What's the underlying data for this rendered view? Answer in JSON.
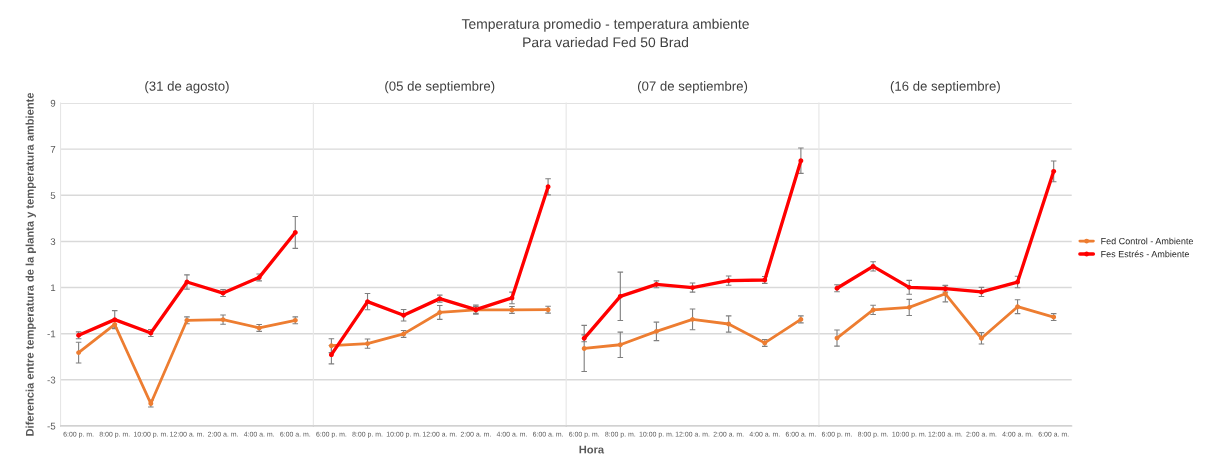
{
  "chart_data": [
    {
      "type": "line",
      "ylabel": "Diferencia entre temperatura de la planta y temperatura ambiente",
      "annotations": [
        "(31 de agosto)"
      ],
      "categories": [
        "6:00 p. m.",
        "8:00 p. m.",
        "10:00 p. m.",
        "12:00 a. m.",
        "2:00 a. m.",
        "4:00 a. m.",
        "6:00 a. m."
      ],
      "ylim": [
        -5,
        9
      ],
      "yticks": [
        -5,
        -3,
        -1,
        1,
        3,
        5,
        7,
        9
      ],
      "grid": "y",
      "marker": "circle",
      "series": [
        {
          "color": "#ed7d31",
          "values": [
            -1.82,
            -0.6,
            -4.03,
            -0.42,
            -0.39,
            -0.75,
            -0.42
          ],
          "errors": [
            0.45,
            0.15,
            0.15,
            0.15,
            0.2,
            0.15,
            0.15
          ]
        },
        {
          "color": "#ff0000",
          "values": [
            -1.07,
            -0.39,
            -0.97,
            1.24,
            0.76,
            1.44,
            3.39
          ],
          "errors": [
            0.15,
            0.39,
            0.15,
            0.31,
            0.15,
            0.15,
            0.69
          ]
        }
      ]
    },
    {
      "type": "line",
      "annotations": [
        "(05 de septiembre)"
      ],
      "categories": [
        "6:00 p. m.",
        "8:00 p. m.",
        "10:00 p. m.",
        "12:00 a. m.",
        "2:00 a. m.",
        "4:00 a. m.",
        "6:00 a. m."
      ],
      "ylim": [
        -5,
        9
      ],
      "yticks": [
        -5,
        -3,
        -1,
        1,
        3,
        5,
        7,
        9
      ],
      "grid": "y",
      "marker": "circle",
      "tick_labels": "x",
      "series": [
        {
          "color": "#ed7d31",
          "values": [
            -1.52,
            -1.43,
            -1.01,
            -0.08,
            0.03,
            0.03,
            0.04
          ],
          "errors": [
            0.3,
            0.2,
            0.15,
            0.3,
            0.15,
            0.15,
            0.15
          ]
        },
        {
          "color": "#ff0000",
          "values": [
            -1.91,
            0.39,
            -0.2,
            0.52,
            0.04,
            0.55,
            5.37
          ],
          "errors": [
            0.4,
            0.35,
            0.25,
            0.15,
            0.2,
            0.25,
            0.35
          ]
        }
      ]
    },
    {
      "type": "line",
      "title": "Temperatura promedio - temperatura ambiente",
      "subtitle": "Para variedad Fed 50 Brad",
      "xlabel": "Hora",
      "annotations": [
        "(07 de septiembre)"
      ],
      "categories": [
        "6:00 p. m.",
        "8:00 p. m.",
        "10:00 p. m.",
        "12:00 a. m.",
        "2:00 a. m.",
        "4:00 a. m.",
        "6:00 a. m."
      ],
      "ylim": [
        -5,
        9
      ],
      "yticks": [
        -5,
        -3,
        -1,
        1,
        3,
        5,
        7,
        9
      ],
      "grid": "y",
      "marker": "circle",
      "tick_labels": "x",
      "series": [
        {
          "color": "#ed7d31",
          "values": [
            -1.64,
            -1.48,
            -0.9,
            -0.38,
            -0.58,
            -1.4,
            -0.38
          ],
          "errors": [
            1.0,
            0.55,
            0.4,
            0.45,
            0.35,
            0.15,
            0.15
          ]
        },
        {
          "color": "#ff0000",
          "values": [
            -1.2,
            0.62,
            1.14,
            1.0,
            1.3,
            1.33,
            6.5
          ],
          "errors": [
            0.15,
            1.05,
            0.15,
            0.2,
            0.2,
            0.15,
            0.55
          ]
        }
      ]
    },
    {
      "type": "line",
      "annotations": [
        "(16 de septiembre)"
      ],
      "categories": [
        "6:00 p. m.",
        "8:00 p. m.",
        "10:00 p. m.",
        "12:00 a. m.",
        "2:00 a. m.",
        "4:00 a. m.",
        "6:00 a. m."
      ],
      "ylim": [
        -5,
        9
      ],
      "yticks": [
        -5,
        -3,
        -1,
        1,
        3,
        5,
        7,
        9
      ],
      "grid": "y",
      "marker": "circle",
      "tick_labels": "x",
      "legend": "right",
      "series": [
        {
          "name": "Fed Control - Ambiente",
          "color": "#ed7d31",
          "values": [
            -1.19,
            0.03,
            0.14,
            0.73,
            -1.2,
            0.17,
            -0.28
          ],
          "errors": [
            0.35,
            0.2,
            0.35,
            0.35,
            0.25,
            0.3,
            0.15
          ]
        },
        {
          "name": "Fes Estrés - Ambiente",
          "color": "#ff0000",
          "values": [
            0.97,
            1.92,
            1.01,
            0.95,
            0.81,
            1.24,
            6.04
          ],
          "errors": [
            0.15,
            0.2,
            0.3,
            0.15,
            0.2,
            0.25,
            0.45
          ]
        }
      ]
    }
  ]
}
